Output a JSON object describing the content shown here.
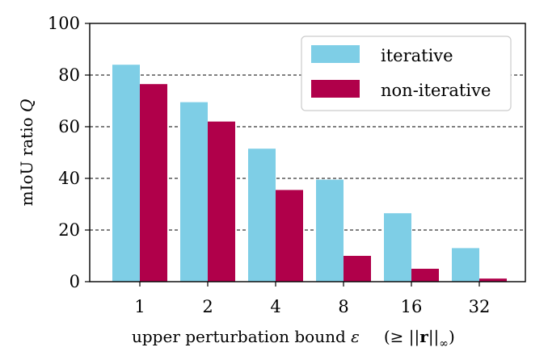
{
  "chart_data": {
    "type": "bar",
    "categories": [
      "1",
      "2",
      "4",
      "8",
      "16",
      "32"
    ],
    "series": [
      {
        "name": "iterative",
        "color": "#7ECEE6",
        "values": [
          84,
          69.5,
          51.5,
          39.5,
          26.5,
          13
        ]
      },
      {
        "name": "non-iterative",
        "color": "#B0004A",
        "values": [
          76.5,
          62,
          35.5,
          10,
          5,
          1.2
        ]
      }
    ],
    "ylabel_text": "mIoU ratio ",
    "ylabel_symbol": "Q",
    "xlabel_text": "upper perturbation bound ",
    "xlabel_symbol": "ε",
    "xlabel_note_prefix": "(≥ ||",
    "xlabel_note_bold": "r",
    "xlabel_note_suffix": "||",
    "xlabel_note_subscript": "∞",
    "xlabel_note_close": ")",
    "ylim": [
      0,
      100
    ],
    "yticks": [
      0,
      20,
      40,
      60,
      80,
      100
    ],
    "grid": "horizontal dashed at 20, 40, 60, 80",
    "legend_position": "top-right"
  }
}
